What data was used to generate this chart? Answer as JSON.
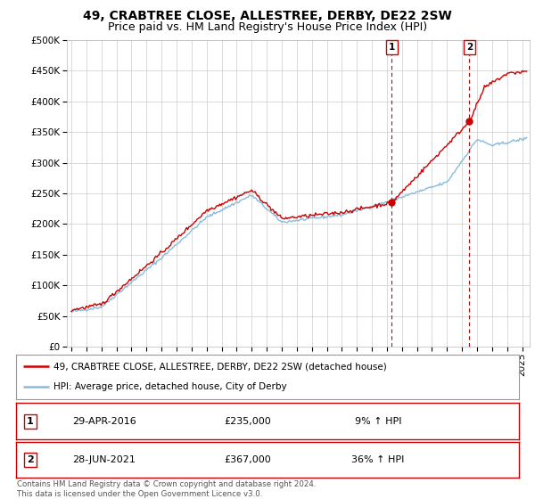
{
  "title": "49, CRABTREE CLOSE, ALLESTREE, DERBY, DE22 2SW",
  "subtitle": "Price paid vs. HM Land Registry's House Price Index (HPI)",
  "legend_line1": "49, CRABTREE CLOSE, ALLESTREE, DERBY, DE22 2SW (detached house)",
  "legend_line2": "HPI: Average price, detached house, City of Derby",
  "footnote": "Contains HM Land Registry data © Crown copyright and database right 2024.\nThis data is licensed under the Open Government Licence v3.0.",
  "sale1_label": "1",
  "sale1_date": "29-APR-2016",
  "sale1_price": "£235,000",
  "sale1_hpi": "9% ↑ HPI",
  "sale1_year": 2016.32,
  "sale1_value": 235000,
  "sale2_label": "2",
  "sale2_date": "28-JUN-2021",
  "sale2_price": "£367,000",
  "sale2_hpi": "36% ↑ HPI",
  "sale2_year": 2021.49,
  "sale2_value": 367000,
  "line_color_red": "#cc0000",
  "line_color_blue": "#88bbdd",
  "marker_color_red": "#cc0000",
  "ylim_min": 0,
  "ylim_max": 500000,
  "ytick_step": 50000,
  "xmin": 1994.7,
  "xmax": 2025.5,
  "background_color": "#ffffff",
  "grid_color": "#cccccc",
  "title_fontsize": 10,
  "subtitle_fontsize": 9,
  "axis_fontsize": 7.5
}
